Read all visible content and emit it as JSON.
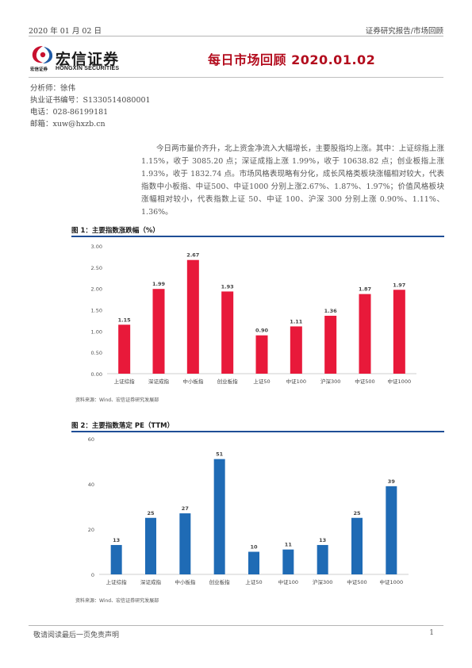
{
  "header": {
    "date": "2020 年 01 月 02 日",
    "category": "证券研究报告/市场回顾"
  },
  "logo": {
    "cn_name": "宏信证券",
    "cn_small": "宏信证券",
    "en_name": "HONGXIN SECURITIES",
    "colors": {
      "red": "#c8102e",
      "blue": "#1f5aa6"
    }
  },
  "title": "每日市场回顾 2020.01.02",
  "analyst": {
    "name_line": "分析师：徐伟",
    "cert_line": "执业证书编号：S1330514080001",
    "phone_line": "电话：028-86199181",
    "email_line": "邮箱：xuw@hxzb.cn"
  },
  "summary": "今日两市量价齐升，北上资金净流入大幅增长，主要股指均上涨。其中：上证综指上涨 1.15%，收于 3085.20 点；深证成指上涨 1.99%，收于 10638.82 点；创业板指上涨 1.93%，收于 1832.74 点。市场风格表现略有分化，成长风格类板块涨幅相对较大，代表指数中小板指、中证500、中证1000 分别上涨2.67%、1.87%、1.97%；价值风格板块涨幅相对较小，代表指数上证 50、中证 100、沪深 300 分别上涨 0.90%、1.11%、1.36%。",
  "figure1": {
    "title": "图 1：主要指数涨跌幅（%）",
    "source": "资料来源：Wind、宏信证券研究发展部"
  },
  "figure2": {
    "title": "图 2：主要指数落定 PE（TTM）",
    "source": "资料来源：Wind、宏信证券研究发展部"
  },
  "chart_data": [
    {
      "type": "bar",
      "categories": [
        "上证综指",
        "深证成指",
        "中小板指",
        "创业板指",
        "上证50",
        "中证100",
        "沪深300",
        "中证500",
        "中证1000"
      ],
      "values": [
        1.15,
        1.99,
        2.67,
        1.93,
        0.9,
        1.11,
        1.36,
        1.87,
        1.97
      ],
      "value_labels": [
        "1.15",
        "1.99",
        "2.67",
        "1.93",
        "0.90",
        "1.11",
        "1.36",
        "1.87",
        "1.97"
      ],
      "yticks": [
        "0.00",
        "0.50",
        "1.00",
        "1.50",
        "2.00",
        "2.50",
        "3.00"
      ],
      "ylim": [
        0,
        3
      ],
      "color": "#e8193a",
      "grid": false
    },
    {
      "type": "bar",
      "categories": [
        "上证综指",
        "深证成指",
        "中小板指",
        "创业板指",
        "上证50",
        "中证100",
        "沪深300",
        "中证500",
        "中证1000"
      ],
      "values": [
        13,
        25,
        27,
        51,
        10,
        11,
        13,
        25,
        39
      ],
      "value_labels": [
        "13",
        "25",
        "27",
        "51",
        "10",
        "11",
        "13",
        "25",
        "39"
      ],
      "yticks": [
        "0",
        "20",
        "40",
        "60"
      ],
      "ylim": [
        0,
        60
      ],
      "color": "#1f6bb5",
      "grid": false
    }
  ],
  "footer": {
    "disclaimer": "敬请阅读最后一页免责声明",
    "page": "1"
  }
}
